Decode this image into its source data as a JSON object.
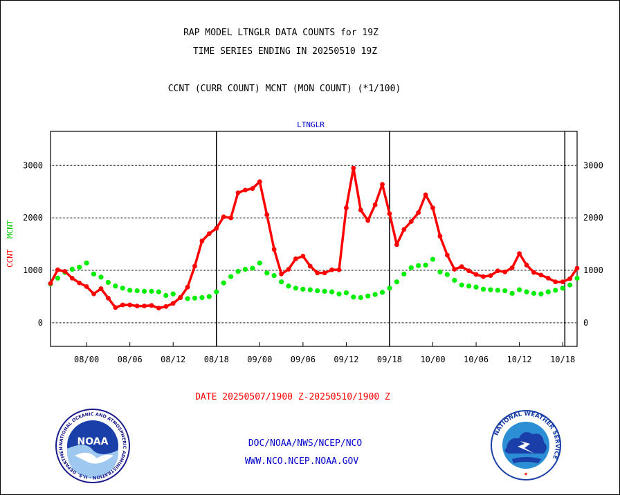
{
  "header": {
    "title_line1": "RAP MODEL LTNGLR DATA COUNTS for 19Z",
    "title_line2": "TIME SERIES ENDING IN 20250510 19Z",
    "subtitle": "CCNT (CURR COUNT) MCNT (MON COUNT) (*1/100)"
  },
  "footer": {
    "date_range": "DATE 20250507/1900 Z-20250510/1900 Z",
    "org_line": "DOC/NOAA/NWS/NCEP/NCO",
    "url_line": "WWW.NCO.NCEP.NOAA.GOV"
  },
  "logos": {
    "noaa_text": "NOAA",
    "noaa_ring_text": "NATIONAL OCEANIC AND ATMOSPHERIC ADMINISTRATION · U.S. DEPARTMENT OF COMMERCE ·",
    "nws_ring_text": "NATIONAL WEATHER SERVICE"
  },
  "colors": {
    "ccnt": "#ff0000",
    "mcnt": "#00ee00",
    "axis_label": "#0000cc",
    "background": "#ffffff",
    "grid": "#000000"
  },
  "chart_data": {
    "type": "line",
    "title": "LTNGLR",
    "ylabel_ccnt": "CCNT",
    "ylabel_mcnt": "MCNT",
    "ylim": [
      -450,
      3650
    ],
    "yticks": [
      0,
      1000,
      2000,
      3000
    ],
    "x_tick_labels": [
      "08/00",
      "08/06",
      "08/12",
      "08/18",
      "09/00",
      "09/06",
      "09/12",
      "09/18",
      "10/00",
      "10/06",
      "10/12",
      "10/18"
    ],
    "x_tick_hours": [
      5,
      11,
      17,
      23,
      29,
      35,
      41,
      47,
      53,
      59,
      65,
      71
    ],
    "xlim": [
      0,
      73
    ],
    "day_boundaries": [
      23,
      47,
      71.3
    ],
    "grid": true,
    "series": [
      {
        "name": "CCNT",
        "x": [
          0,
          1,
          2,
          3,
          4,
          5,
          6,
          7,
          8,
          9,
          10,
          11,
          12,
          13,
          14,
          15,
          16,
          17,
          18,
          19,
          20,
          21,
          22,
          23,
          24,
          25,
          26,
          27,
          28,
          29,
          30,
          31,
          32,
          33,
          34,
          35,
          36,
          37,
          38,
          39,
          40,
          41,
          42,
          43,
          44,
          45,
          46,
          47,
          48,
          49,
          50,
          51,
          52,
          53,
          54,
          55,
          56,
          57,
          58,
          59,
          60,
          61,
          62,
          63,
          64,
          65,
          66,
          67,
          68,
          69,
          70,
          71,
          72,
          73
        ],
        "values": [
          750,
          1010,
          980,
          850,
          760,
          690,
          550,
          650,
          470,
          290,
          340,
          340,
          320,
          320,
          330,
          280,
          310,
          370,
          480,
          680,
          1080,
          1560,
          1700,
          1800,
          2020,
          2000,
          2480,
          2530,
          2560,
          2690,
          2060,
          1400,
          930,
          1020,
          1220,
          1270,
          1080,
          950,
          950,
          1010,
          1010,
          2190,
          2950,
          2150,
          1950,
          2250,
          2640,
          2080,
          1490,
          1780,
          1930,
          2100,
          2440,
          2190,
          1650,
          1290,
          1020,
          1070,
          990,
          920,
          880,
          900,
          990,
          970,
          1050,
          1320,
          1100,
          960,
          910,
          850,
          780,
          780,
          840,
          1040
        ]
      },
      {
        "name": "MCNT",
        "x": [
          0,
          1,
          2,
          3,
          4,
          5,
          6,
          7,
          8,
          9,
          10,
          11,
          12,
          13,
          14,
          15,
          16,
          17,
          18,
          19,
          20,
          21,
          22,
          23,
          24,
          25,
          26,
          27,
          28,
          29,
          30,
          31,
          32,
          33,
          34,
          35,
          36,
          37,
          38,
          39,
          40,
          41,
          42,
          43,
          44,
          45,
          46,
          47,
          48,
          49,
          50,
          51,
          52,
          53,
          54,
          55,
          56,
          57,
          58,
          59,
          60,
          61,
          62,
          63,
          64,
          65,
          66,
          67,
          68,
          69,
          70,
          71,
          72,
          73
        ],
        "values": [
          740,
          850,
          960,
          1020,
          1060,
          1140,
          930,
          870,
          770,
          700,
          660,
          620,
          610,
          600,
          600,
          590,
          520,
          550,
          480,
          460,
          470,
          480,
          500,
          590,
          760,
          880,
          980,
          1020,
          1040,
          1140,
          950,
          900,
          780,
          700,
          660,
          640,
          630,
          610,
          600,
          590,
          550,
          570,
          490,
          480,
          510,
          540,
          580,
          660,
          780,
          930,
          1050,
          1090,
          1100,
          1210,
          970,
          920,
          810,
          720,
          700,
          680,
          640,
          630,
          620,
          610,
          560,
          630,
          590,
          560,
          550,
          590,
          620,
          660,
          720,
          850
        ]
      }
    ]
  }
}
